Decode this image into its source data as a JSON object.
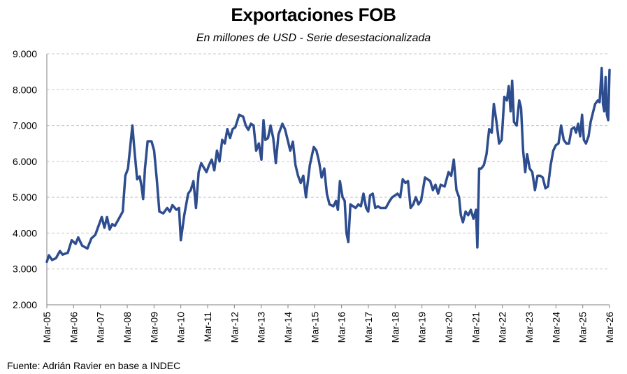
{
  "chart_data": {
    "type": "line",
    "title": "Exportaciones FOB",
    "subtitle": "En millones de USD - Serie desestacionalizada",
    "source": "Fuente: Adrián Ravier en base a INDEC",
    "xlabel": "",
    "ylabel": "",
    "ylim": [
      2000,
      9000
    ],
    "xlim": [
      2005.0,
      2026.0
    ],
    "grid": true,
    "line_color": "#2E4D8F",
    "grid_color": "#c8c8c8",
    "y_ticks": [
      2000,
      3000,
      4000,
      5000,
      6000,
      7000,
      8000,
      9000
    ],
    "y_tick_labels": [
      "2.000",
      "3.000",
      "4.000",
      "5.000",
      "6.000",
      "7.000",
      "8.000",
      "9.000"
    ],
    "x_tick_labels": [
      "Mar-05",
      "Mar-06",
      "Mar-07",
      "Mar-08",
      "Mar-09",
      "Mar-10",
      "Mar-11",
      "Mar-12",
      "Mar-13",
      "Mar-14",
      "Mar-15",
      "Mar-16",
      "Mar-17",
      "Mar-18",
      "Mar-19",
      "Mar-20",
      "Mar-21",
      "Mar-22",
      "Mar-23",
      "Mar-24",
      "Mar-25",
      "Mar-26"
    ],
    "series": [
      {
        "name": "Exportaciones FOB",
        "points": [
          [
            2005.0,
            3200
          ],
          [
            2005.08,
            3380
          ],
          [
            2005.2,
            3250
          ],
          [
            2005.35,
            3300
          ],
          [
            2005.5,
            3500
          ],
          [
            2005.6,
            3400
          ],
          [
            2005.8,
            3450
          ],
          [
            2005.95,
            3800
          ],
          [
            2006.1,
            3700
          ],
          [
            2006.2,
            3880
          ],
          [
            2006.35,
            3650
          ],
          [
            2006.55,
            3570
          ],
          [
            2006.7,
            3850
          ],
          [
            2006.85,
            3950
          ],
          [
            2007.0,
            4250
          ],
          [
            2007.1,
            4450
          ],
          [
            2007.2,
            4150
          ],
          [
            2007.3,
            4450
          ],
          [
            2007.4,
            4100
          ],
          [
            2007.5,
            4250
          ],
          [
            2007.6,
            4200
          ],
          [
            2007.75,
            4400
          ],
          [
            2007.9,
            4600
          ],
          [
            2008.0,
            5600
          ],
          [
            2008.1,
            5800
          ],
          [
            2008.2,
            6500
          ],
          [
            2008.27,
            7000
          ],
          [
            2008.35,
            6300
          ],
          [
            2008.45,
            5500
          ],
          [
            2008.55,
            5580
          ],
          [
            2008.62,
            5300
          ],
          [
            2008.68,
            4950
          ],
          [
            2008.75,
            5800
          ],
          [
            2008.85,
            6560
          ],
          [
            2009.0,
            6560
          ],
          [
            2009.1,
            6300
          ],
          [
            2009.2,
            5500
          ],
          [
            2009.3,
            4600
          ],
          [
            2009.45,
            4550
          ],
          [
            2009.6,
            4700
          ],
          [
            2009.7,
            4600
          ],
          [
            2009.8,
            4780
          ],
          [
            2009.95,
            4650
          ],
          [
            2010.05,
            4700
          ],
          [
            2010.12,
            3800
          ],
          [
            2010.25,
            4500
          ],
          [
            2010.4,
            5100
          ],
          [
            2010.5,
            5200
          ],
          [
            2010.6,
            5450
          ],
          [
            2010.7,
            4700
          ],
          [
            2010.8,
            5700
          ],
          [
            2010.9,
            5950
          ],
          [
            2011.1,
            5700
          ],
          [
            2011.2,
            5900
          ],
          [
            2011.3,
            6050
          ],
          [
            2011.4,
            5750
          ],
          [
            2011.5,
            6300
          ],
          [
            2011.6,
            6000
          ],
          [
            2011.7,
            6600
          ],
          [
            2011.8,
            6500
          ],
          [
            2011.9,
            6900
          ],
          [
            2012.0,
            6650
          ],
          [
            2012.1,
            6900
          ],
          [
            2012.2,
            6950
          ],
          [
            2012.35,
            7300
          ],
          [
            2012.5,
            7250
          ],
          [
            2012.6,
            7000
          ],
          [
            2012.7,
            6880
          ],
          [
            2012.8,
            7050
          ],
          [
            2012.9,
            7000
          ],
          [
            2013.0,
            6300
          ],
          [
            2013.1,
            6500
          ],
          [
            2013.2,
            6050
          ],
          [
            2013.28,
            7150
          ],
          [
            2013.35,
            6600
          ],
          [
            2013.45,
            6650
          ],
          [
            2013.55,
            7000
          ],
          [
            2013.65,
            6650
          ],
          [
            2013.75,
            5950
          ],
          [
            2013.85,
            6750
          ],
          [
            2014.0,
            7050
          ],
          [
            2014.1,
            6900
          ],
          [
            2014.2,
            6600
          ],
          [
            2014.3,
            6300
          ],
          [
            2014.4,
            6550
          ],
          [
            2014.5,
            5900
          ],
          [
            2014.6,
            5600
          ],
          [
            2014.7,
            5400
          ],
          [
            2014.8,
            5600
          ],
          [
            2014.9,
            5000
          ],
          [
            2015.05,
            5900
          ],
          [
            2015.2,
            6400
          ],
          [
            2015.3,
            6300
          ],
          [
            2015.4,
            6000
          ],
          [
            2015.5,
            5550
          ],
          [
            2015.6,
            5800
          ],
          [
            2015.7,
            5100
          ],
          [
            2015.8,
            4800
          ],
          [
            2015.95,
            4750
          ],
          [
            2016.05,
            4900
          ],
          [
            2016.12,
            4650
          ],
          [
            2016.2,
            5450
          ],
          [
            2016.3,
            5000
          ],
          [
            2016.38,
            4900
          ],
          [
            2016.45,
            4000
          ],
          [
            2016.52,
            3750
          ],
          [
            2016.6,
            4800
          ],
          [
            2016.7,
            4750
          ],
          [
            2016.8,
            4700
          ],
          [
            2016.9,
            4800
          ],
          [
            2017.0,
            4750
          ],
          [
            2017.1,
            5100
          ],
          [
            2017.2,
            4700
          ],
          [
            2017.28,
            4600
          ],
          [
            2017.35,
            5050
          ],
          [
            2017.45,
            5100
          ],
          [
            2017.55,
            4700
          ],
          [
            2017.65,
            4750
          ],
          [
            2017.75,
            4700
          ],
          [
            2017.85,
            4700
          ],
          [
            2017.95,
            4700
          ],
          [
            2018.1,
            4900
          ],
          [
            2018.2,
            5000
          ],
          [
            2018.3,
            5050
          ],
          [
            2018.4,
            5100
          ],
          [
            2018.5,
            5000
          ],
          [
            2018.6,
            5500
          ],
          [
            2018.7,
            5400
          ],
          [
            2018.8,
            5450
          ],
          [
            2018.9,
            4700
          ],
          [
            2019.0,
            4800
          ],
          [
            2019.1,
            5000
          ],
          [
            2019.2,
            4800
          ],
          [
            2019.3,
            4900
          ],
          [
            2019.45,
            5550
          ],
          [
            2019.55,
            5500
          ],
          [
            2019.65,
            5450
          ],
          [
            2019.75,
            5200
          ],
          [
            2019.85,
            5350
          ],
          [
            2019.95,
            5100
          ],
          [
            2020.05,
            5350
          ],
          [
            2020.2,
            5300
          ],
          [
            2020.35,
            5700
          ],
          [
            2020.45,
            5600
          ],
          [
            2020.55,
            6050
          ],
          [
            2020.65,
            5200
          ],
          [
            2020.75,
            5000
          ],
          [
            2020.82,
            4500
          ],
          [
            2020.9,
            4300
          ],
          [
            2021.0,
            4600
          ],
          [
            2021.1,
            4500
          ],
          [
            2021.2,
            4650
          ],
          [
            2021.3,
            4400
          ],
          [
            2021.4,
            4650
          ],
          [
            2021.45,
            3600
          ],
          [
            2021.52,
            5800
          ],
          [
            2021.6,
            5800
          ],
          [
            2021.7,
            5900
          ],
          [
            2021.8,
            6200
          ],
          [
            2021.9,
            6900
          ],
          [
            2022.0,
            6800
          ],
          [
            2022.08,
            7600
          ],
          [
            2022.18,
            7100
          ],
          [
            2022.28,
            6500
          ],
          [
            2022.38,
            6600
          ],
          [
            2022.48,
            7800
          ],
          [
            2022.58,
            7700
          ],
          [
            2022.65,
            8100
          ],
          [
            2022.72,
            7400
          ],
          [
            2022.78,
            8250
          ],
          [
            2022.85,
            7100
          ],
          [
            2022.95,
            7000
          ],
          [
            2023.05,
            7700
          ],
          [
            2023.12,
            7500
          ],
          [
            2023.2,
            6300
          ],
          [
            2023.28,
            5700
          ],
          [
            2023.35,
            6200
          ],
          [
            2023.45,
            5800
          ],
          [
            2023.55,
            5700
          ],
          [
            2023.65,
            5200
          ],
          [
            2023.75,
            5600
          ],
          [
            2023.85,
            5600
          ],
          [
            2023.95,
            5550
          ],
          [
            2024.05,
            5250
          ],
          [
            2024.15,
            5300
          ],
          [
            2024.25,
            5900
          ],
          [
            2024.35,
            6300
          ],
          [
            2024.45,
            6450
          ],
          [
            2024.55,
            6500
          ],
          [
            2024.65,
            7000
          ],
          [
            2024.75,
            6600
          ],
          [
            2024.85,
            6500
          ],
          [
            2024.95,
            6500
          ],
          [
            2025.05,
            6900
          ],
          [
            2025.15,
            6950
          ],
          [
            2025.22,
            6800
          ],
          [
            2025.3,
            7050
          ],
          [
            2025.38,
            6700
          ],
          [
            2025.45,
            7300
          ],
          [
            2025.52,
            6600
          ],
          [
            2025.6,
            6500
          ],
          [
            2025.7,
            6700
          ],
          [
            2025.78,
            7100
          ],
          [
            2025.88,
            7400
          ],
          [
            2025.95,
            7600
          ],
          [
            2026.05,
            7700
          ],
          [
            2026.12,
            7650
          ],
          [
            2026.2,
            8600
          ],
          [
            2026.25,
            7600
          ],
          [
            2026.3,
            7400
          ],
          [
            2026.35,
            8350
          ],
          [
            2026.4,
            7300
          ],
          [
            2026.45,
            7150
          ],
          [
            2026.5,
            8550
          ]
        ]
      }
    ]
  }
}
